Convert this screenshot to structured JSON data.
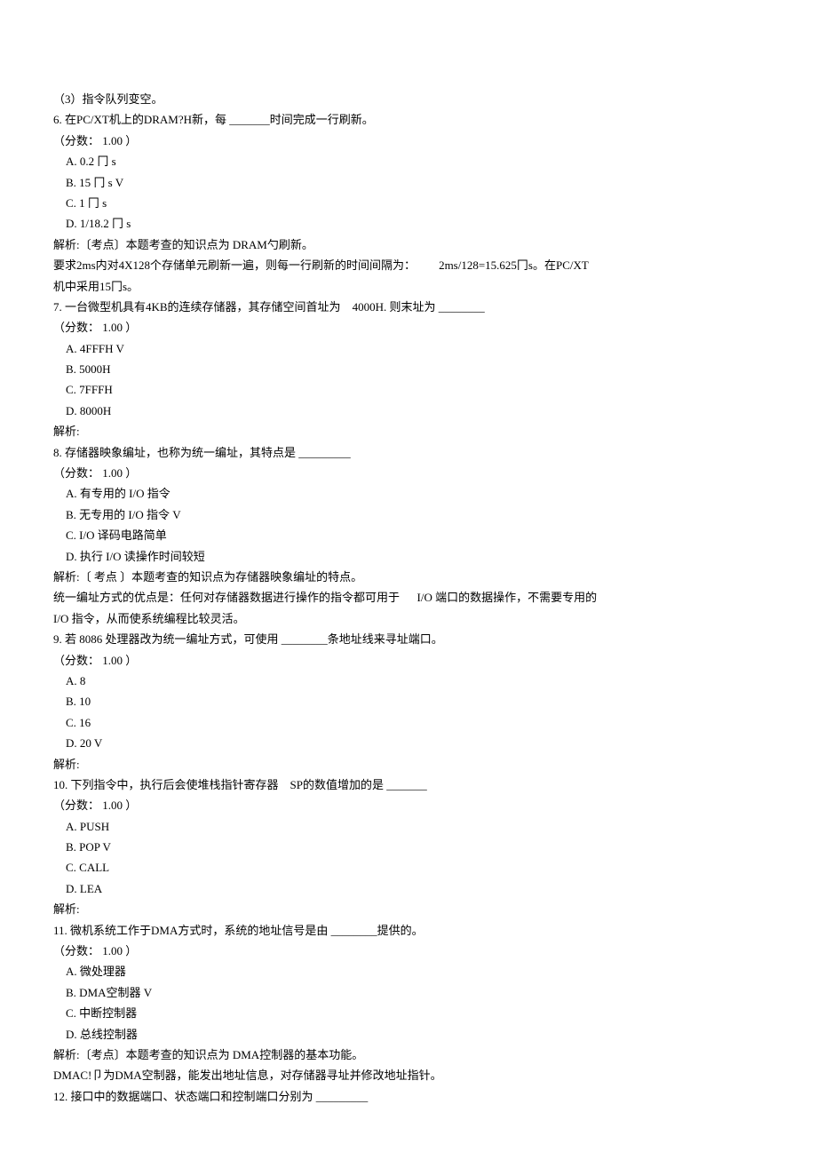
{
  "q5_sub3": "（3）指令队列变空。",
  "q6": {
    "stem": "6. 在PC/XT机上的DRAM?H新，每 _______时间完成一行刷新。",
    "score": "（分数： 1.00 ）",
    "optA": "A.  0.2 冂  s",
    "optB": "B.  15 冂  s V",
    "optC": "C.  1 冂  s",
    "optD": "D.  1/18.2 冂  s",
    "expl1": "解析:〔考点〕本题考查的知识点为 DRAM勺刷新。",
    "expl2_a": "要求2ms内对4X128个存储单元刷新一遍，则每一行刷新的时间间隔为：",
    "expl2_b": "2ms/128=15.625冂s。在PC/XT",
    "expl3": "机中采用15冂s。"
  },
  "q7": {
    "stem_a": "7.  一台微型机具有4KB的连续存储器，其存储空间首址为",
    "stem_b": "4000H. 则末址为 ________",
    "score": "（分数： 1.00 ）",
    "optA": "A.  4FFFH V",
    "optB": "B.  5000H",
    "optC": "C.  7FFFH",
    "optD": "D.  8000H",
    "expl": "解析:"
  },
  "q8": {
    "stem": "8.  存储器映象编址，也称为统一编址，其特点是  _________",
    "score": "（分数： 1.00 ）",
    "optA": "A.  有专用的  I/O 指令",
    "optB": "B.  无专用的  I/O 指令  V",
    "optC": "C.  I/O 译码电路简单",
    "optD": "D.  执行 I/O 读操作时间较短",
    "expl1": "解析:〔 考点 〕本题考查的知识点为存储器映象编址的特点。",
    "expl2_a": "统一编址方式的优点是：任何对存储器数据进行操作的指令都可用于",
    "expl2_b": "I/O 端口的数据操作，不需要专用的",
    "expl3": "I/O 指令，从而使系统编程比较灵活。"
  },
  "q9": {
    "stem": "9.  若 8086 处理器改为统一编址方式，可使用  ________条地址线来寻址端口。",
    "score": "（分数： 1.00 ）",
    "optA": "A.  8",
    "optB": "B.  10",
    "optC": "C.  16",
    "optD": "D.  20 V",
    "expl": "解析:"
  },
  "q10": {
    "stem_a": "10.  下列指令中，执行后会使堆栈指针寄存器",
    "stem_b": "SP的数值增加的是 _______",
    "score": "（分数： 1.00 ）",
    "optA": "A.  PUSH",
    "optB": "B.  POP V",
    "optC": "C.  CALL",
    "optD": "D.  LEA",
    "expl": "解析:"
  },
  "q11": {
    "stem": "11.  微机系统工作于DMA方式时，系统的地址信号是由  ________提供的。",
    "score": "（分数： 1.00 ）",
    "optA": "A.  微处理器",
    "optB": "B.  DMA空制器  V",
    "optC": "C.  中断控制器",
    "optD": "D.  总线控制器",
    "expl1": "解析:〔考点〕本题考查的知识点为 DMA控制器的基本功能。",
    "expl2": "DMAC!卩为DMA空制器，能发出地址信息，对存储器寻址并修改地址指针。"
  },
  "q12": {
    "stem": "12.  接口中的数据端口、状态端口和控制端口分别为  _________"
  }
}
